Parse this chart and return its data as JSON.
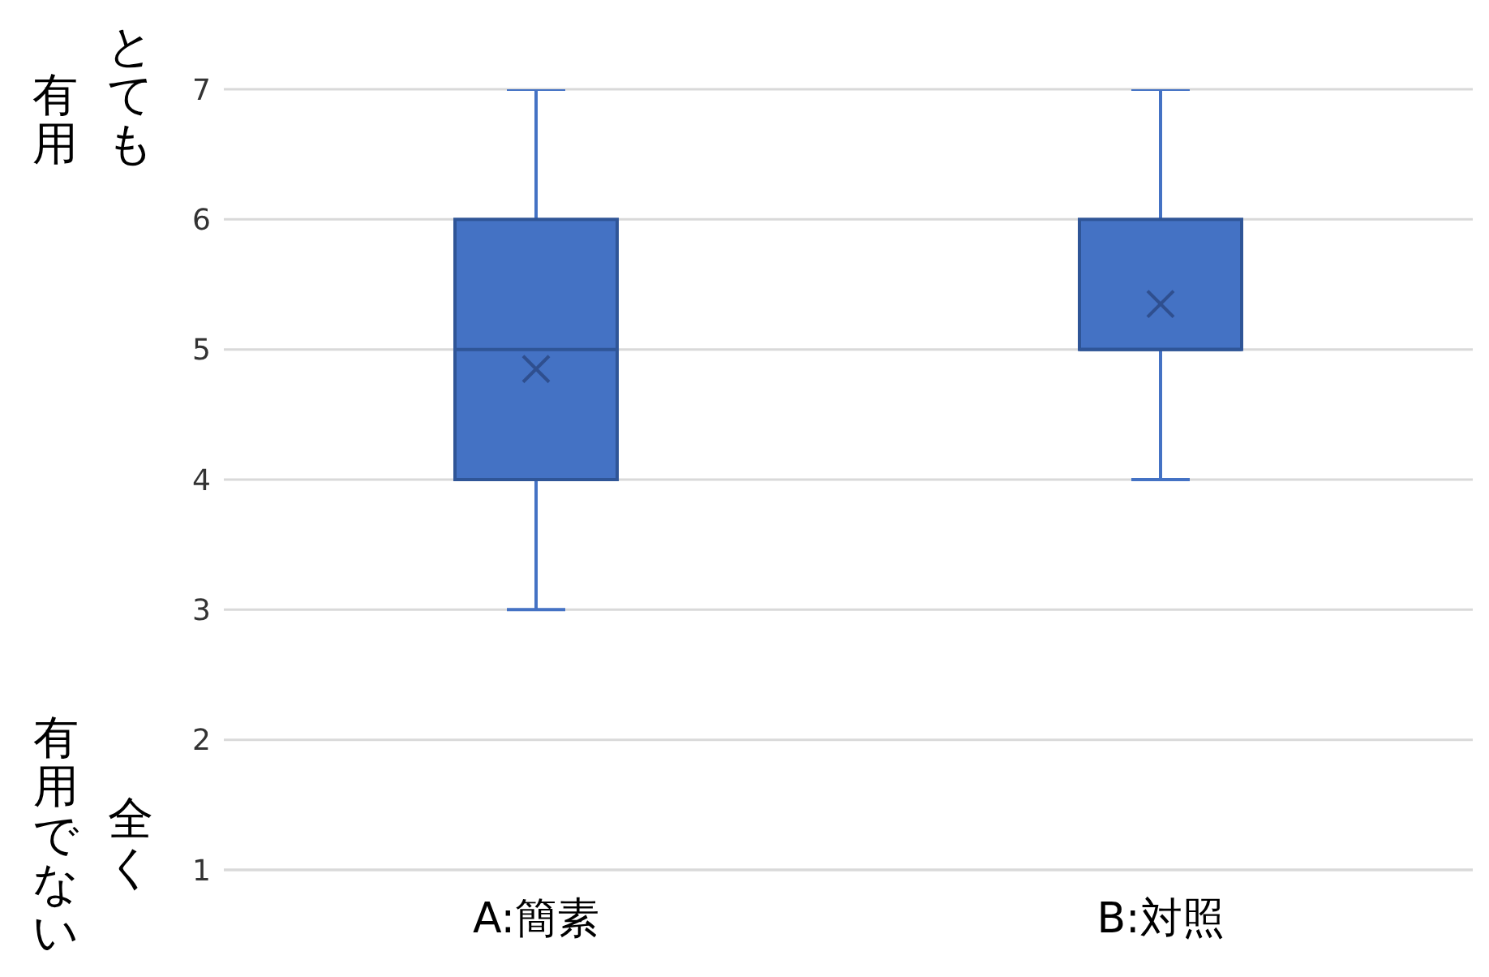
{
  "chart_data": {
    "type": "box",
    "categories": [
      "A:簡素",
      "B:対照"
    ],
    "color": "#4472c4",
    "boxes": [
      {
        "low": 3,
        "q1": 4,
        "median": 5,
        "q3": 6,
        "high": 7,
        "mean": 4.85
      },
      {
        "low": 4,
        "q1": 5,
        "median": 5,
        "q3": 6,
        "high": 7,
        "mean": 5.35
      }
    ],
    "ylim": [
      1,
      7
    ],
    "yticks": [
      1,
      2,
      3,
      4,
      5,
      6,
      7
    ],
    "grid": "y",
    "marker": "cross",
    "annotations": [
      "とても",
      "有用",
      "全く",
      "有用でない"
    ]
  }
}
